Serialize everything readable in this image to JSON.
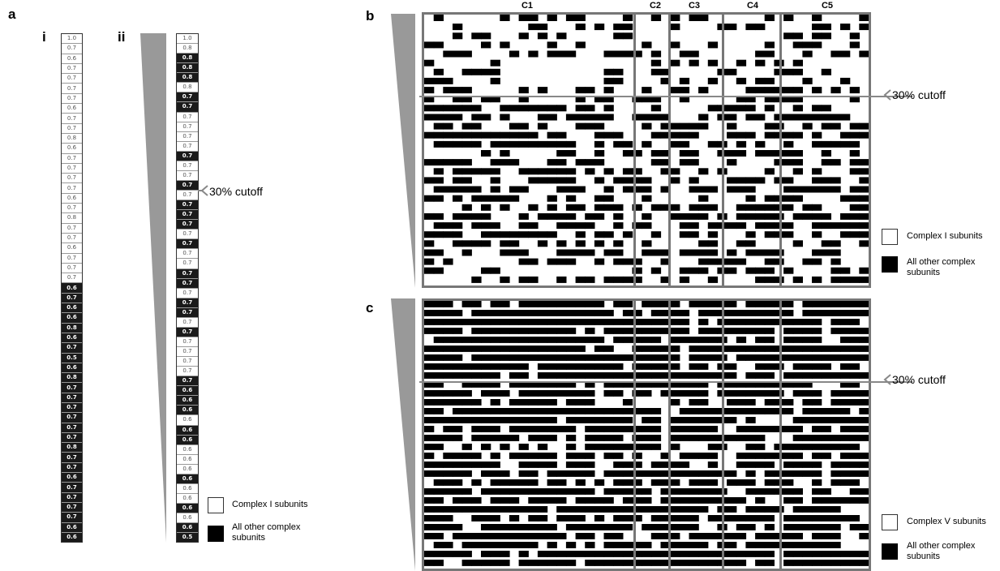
{
  "panels": {
    "a": "a",
    "b": "b",
    "c": "c"
  },
  "subpanels": {
    "i": "i",
    "ii": "ii"
  },
  "cutoff_label": "30% cutoff",
  "column_i": [
    {
      "v": "1.0",
      "dark": false
    },
    {
      "v": "0.7",
      "dark": false
    },
    {
      "v": "0.6",
      "dark": false
    },
    {
      "v": "0.7",
      "dark": false
    },
    {
      "v": "0.7",
      "dark": false
    },
    {
      "v": "0.7",
      "dark": false
    },
    {
      "v": "0.7",
      "dark": false
    },
    {
      "v": "0.6",
      "dark": false
    },
    {
      "v": "0.7",
      "dark": false
    },
    {
      "v": "0.7",
      "dark": false
    },
    {
      "v": "0.8",
      "dark": false
    },
    {
      "v": "0.6",
      "dark": false
    },
    {
      "v": "0.7",
      "dark": false
    },
    {
      "v": "0.7",
      "dark": false
    },
    {
      "v": "0.7",
      "dark": false
    },
    {
      "v": "0.7",
      "dark": false
    },
    {
      "v": "0.6",
      "dark": false
    },
    {
      "v": "0.7",
      "dark": false
    },
    {
      "v": "0.8",
      "dark": false
    },
    {
      "v": "0.7",
      "dark": false
    },
    {
      "v": "0.7",
      "dark": false
    },
    {
      "v": "0.6",
      "dark": false
    },
    {
      "v": "0.7",
      "dark": false
    },
    {
      "v": "0.7",
      "dark": false
    },
    {
      "v": "0.7",
      "dark": false
    },
    {
      "v": "0.6",
      "dark": true
    },
    {
      "v": "0.7",
      "dark": true
    },
    {
      "v": "0.6",
      "dark": true
    },
    {
      "v": "0.6",
      "dark": true
    },
    {
      "v": "0.8",
      "dark": true
    },
    {
      "v": "0.6",
      "dark": true
    },
    {
      "v": "0.7",
      "dark": true
    },
    {
      "v": "0.5",
      "dark": true
    },
    {
      "v": "0.6",
      "dark": true
    },
    {
      "v": "0.8",
      "dark": true
    },
    {
      "v": "0.7",
      "dark": true
    },
    {
      "v": "0.7",
      "dark": true
    },
    {
      "v": "0.7",
      "dark": true
    },
    {
      "v": "0.7",
      "dark": true
    },
    {
      "v": "0.7",
      "dark": true
    },
    {
      "v": "0.7",
      "dark": true
    },
    {
      "v": "0.8",
      "dark": true
    },
    {
      "v": "0.7",
      "dark": true
    },
    {
      "v": "0.7",
      "dark": true
    },
    {
      "v": "0.6",
      "dark": true
    },
    {
      "v": "0.7",
      "dark": true
    },
    {
      "v": "0.7",
      "dark": true
    },
    {
      "v": "0.7",
      "dark": true
    },
    {
      "v": "0.7",
      "dark": true
    },
    {
      "v": "0.6",
      "dark": true
    },
    {
      "v": "0.6",
      "dark": true
    }
  ],
  "column_ii": [
    {
      "v": "1.0",
      "dark": false
    },
    {
      "v": "0.8",
      "dark": false
    },
    {
      "v": "0.8",
      "dark": true
    },
    {
      "v": "0.8",
      "dark": true
    },
    {
      "v": "0.8",
      "dark": true
    },
    {
      "v": "0.8",
      "dark": false
    },
    {
      "v": "0.7",
      "dark": true
    },
    {
      "v": "0.7",
      "dark": true
    },
    {
      "v": "0.7",
      "dark": false
    },
    {
      "v": "0.7",
      "dark": false
    },
    {
      "v": "0.7",
      "dark": false
    },
    {
      "v": "0.7",
      "dark": false
    },
    {
      "v": "0.7",
      "dark": true
    },
    {
      "v": "0.7",
      "dark": false
    },
    {
      "v": "0.7",
      "dark": false
    },
    {
      "v": "0.7",
      "dark": true
    },
    {
      "v": "0.7",
      "dark": false
    },
    {
      "v": "0.7",
      "dark": true
    },
    {
      "v": "0.7",
      "dark": true
    },
    {
      "v": "0.7",
      "dark": true
    },
    {
      "v": "0.7",
      "dark": false
    },
    {
      "v": "0.7",
      "dark": true
    },
    {
      "v": "0.7",
      "dark": false
    },
    {
      "v": "0.7",
      "dark": false
    },
    {
      "v": "0.7",
      "dark": true
    },
    {
      "v": "0.7",
      "dark": true
    },
    {
      "v": "0.7",
      "dark": false
    },
    {
      "v": "0.7",
      "dark": true
    },
    {
      "v": "0.7",
      "dark": true
    },
    {
      "v": "0.7",
      "dark": false
    },
    {
      "v": "0.7",
      "dark": true
    },
    {
      "v": "0.7",
      "dark": false
    },
    {
      "v": "0.7",
      "dark": false
    },
    {
      "v": "0.7",
      "dark": false
    },
    {
      "v": "0.7",
      "dark": false
    },
    {
      "v": "0.7",
      "dark": true
    },
    {
      "v": "0.6",
      "dark": true
    },
    {
      "v": "0.6",
      "dark": true
    },
    {
      "v": "0.6",
      "dark": true
    },
    {
      "v": "0.6",
      "dark": false
    },
    {
      "v": "0.6",
      "dark": true
    },
    {
      "v": "0.6",
      "dark": true
    },
    {
      "v": "0.6",
      "dark": false
    },
    {
      "v": "0.6",
      "dark": false
    },
    {
      "v": "0.6",
      "dark": false
    },
    {
      "v": "0.6",
      "dark": true
    },
    {
      "v": "0.6",
      "dark": false
    },
    {
      "v": "0.6",
      "dark": false
    },
    {
      "v": "0.6",
      "dark": true
    },
    {
      "v": "0.6",
      "dark": false
    },
    {
      "v": "0.6",
      "dark": true
    },
    {
      "v": "0.5",
      "dark": true
    }
  ],
  "legend_a": {
    "white": "Complex I subunits",
    "black": "All other complex subunits"
  },
  "legend_b": {
    "white": "Complex I subunits",
    "black": "All other complex subunits"
  },
  "legend_c": {
    "white": "Complex V subunits",
    "black": "All other complex subunits"
  },
  "matrix_columns": [
    "C1",
    "C2",
    "C3",
    "C4",
    "C5"
  ],
  "matrix_fill": {
    "b_top_black_fraction": 0.3,
    "b_bottom_black_fraction": 0.55,
    "c_top_black_fraction": 0.86,
    "c_bottom_black_fraction": 0.78
  }
}
